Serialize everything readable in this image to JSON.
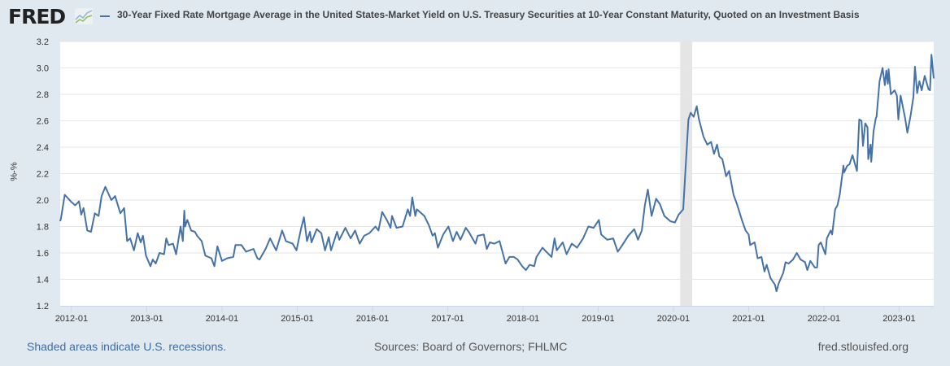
{
  "header": {
    "logo": "FRED",
    "title": "30-Year Fixed Rate Mortgage Average in the United States-Market Yield on U.S. Treasury Securities at 10-Year Constant Maturity, Quoted on an Investment Basis"
  },
  "footer": {
    "recession_note": "Shaded areas indicate U.S. recessions.",
    "sources": "Sources: Board of Governors; FHLMC",
    "site": "fred.stlouisfed.org"
  },
  "colors": {
    "line": "#4572a7",
    "recession": "#e5e5e5",
    "grid": "#e6e6e6",
    "background": "#e1e9f0"
  },
  "chart_data": {
    "type": "line",
    "title": "30-Year Fixed Rate Mortgage Average in the United States-Market Yield on U.S. Treasury Securities at 10-Year Constant Maturity, Quoted on an Investment Basis",
    "xlabel": "",
    "ylabel": "%-%",
    "xlim": [
      2011.85,
      2023.46
    ],
    "ylim": [
      1.2,
      3.2
    ],
    "yticks": [
      1.2,
      1.4,
      1.6,
      1.8,
      2.0,
      2.2,
      2.4,
      2.6,
      2.8,
      3.0,
      3.2
    ],
    "ytick_labels": [
      "1.2",
      "1.4",
      "1.6",
      "1.8",
      "2.0",
      "2.2",
      "2.4",
      "2.6",
      "2.8",
      "3.0",
      "3.2"
    ],
    "xticks": [
      2012,
      2013,
      2014,
      2015,
      2016,
      2017,
      2018,
      2019,
      2020,
      2021,
      2022,
      2023
    ],
    "xtick_labels": [
      "2012-01",
      "2013-01",
      "2014-01",
      "2015-01",
      "2016-01",
      "2017-01",
      "2018-01",
      "2019-01",
      "2020-01",
      "2021-01",
      "2022-01",
      "2023-01"
    ],
    "grid": true,
    "recessions": [
      [
        2020.09,
        2020.25
      ]
    ],
    "series": [
      {
        "name": "30-Year Fixed Rate Mortgage Average in the United States-Market Yield on U.S. Treasury Securities at 10-Year Constant Maturity, Quoted on an Investment Basis",
        "x": [
          2011.85,
          2011.86,
          2011.91,
          2011.99,
          2012.05,
          2012.1,
          2012.13,
          2012.16,
          2012.21,
          2012.26,
          2012.31,
          2012.36,
          2012.4,
          2012.45,
          2012.53,
          2012.58,
          2012.65,
          2012.7,
          2012.74,
          2012.78,
          2012.83,
          2012.88,
          2012.92,
          2012.95,
          2012.99,
          2013.05,
          2013.08,
          2013.12,
          2013.17,
          2013.23,
          2013.26,
          2013.29,
          2013.35,
          2013.39,
          2013.45,
          2013.48,
          2013.5,
          2013.51,
          2013.54,
          2013.59,
          2013.64,
          2013.67,
          2013.73,
          2013.78,
          2013.86,
          2013.9,
          2013.94,
          2014.0,
          2014.07,
          2014.15,
          2014.18,
          2014.26,
          2014.32,
          2014.42,
          2014.47,
          2014.5,
          2014.58,
          2014.64,
          2014.72,
          2014.8,
          2014.85,
          2014.94,
          2014.99,
          2015.05,
          2015.09,
          2015.13,
          2015.17,
          2015.19,
          2015.26,
          2015.32,
          2015.37,
          2015.42,
          2015.45,
          2015.53,
          2015.56,
          2015.64,
          2015.71,
          2015.77,
          2015.83,
          2015.89,
          2015.96,
          2016.04,
          2016.08,
          2016.13,
          2016.2,
          2016.24,
          2016.26,
          2016.32,
          2016.4,
          2016.47,
          2016.5,
          2016.53,
          2016.57,
          2016.59,
          2016.69,
          2016.75,
          2016.8,
          2016.83,
          2016.87,
          2016.94,
          2017.01,
          2017.07,
          2017.12,
          2017.17,
          2017.24,
          2017.28,
          2017.37,
          2017.4,
          2017.48,
          2017.52,
          2017.56,
          2017.62,
          2017.69,
          2017.77,
          2017.82,
          2017.88,
          2017.93,
          2017.99,
          2018.04,
          2018.09,
          2018.15,
          2018.18,
          2018.26,
          2018.31,
          2018.38,
          2018.42,
          2018.45,
          2018.53,
          2018.58,
          2018.65,
          2018.72,
          2018.8,
          2018.87,
          2018.94,
          2019.01,
          2019.04,
          2019.12,
          2019.2,
          2019.26,
          2019.31,
          2019.4,
          2019.48,
          2019.53,
          2019.58,
          2019.62,
          2019.66,
          2019.71,
          2019.77,
          2019.82,
          2019.88,
          2019.96,
          2020.02,
          2020.07,
          2020.13,
          2020.16,
          2020.2,
          2020.23,
          2020.27,
          2020.31,
          2020.34,
          2020.4,
          2020.45,
          2020.5,
          2020.54,
          2020.58,
          2020.61,
          2020.65,
          2020.7,
          2020.74,
          2020.8,
          2020.85,
          2020.91,
          2020.96,
          2021.0,
          2021.02,
          2021.08,
          2021.12,
          2021.17,
          2021.21,
          2021.24,
          2021.29,
          2021.35,
          2021.37,
          2021.4,
          2021.46,
          2021.49,
          2021.53,
          2021.59,
          2021.64,
          2021.69,
          2021.75,
          2021.78,
          2021.82,
          2021.88,
          2021.91,
          2021.93,
          2021.96,
          2022.02,
          2022.04,
          2022.09,
          2022.11,
          2022.15,
          2022.18,
          2022.21,
          2022.26,
          2022.27,
          2022.31,
          2022.34,
          2022.38,
          2022.42,
          2022.44,
          2022.47,
          2022.5,
          2022.52,
          2022.55,
          2022.58,
          2022.59,
          2022.62,
          2022.63,
          2022.66,
          2022.69,
          2022.7,
          2022.74,
          2022.78,
          2022.81,
          2022.83,
          2022.85,
          2022.86,
          2022.89,
          2022.94,
          2022.97,
          2022.99,
          2023.02,
          2023.08,
          2023.11,
          2023.15,
          2023.19,
          2023.21,
          2023.24,
          2023.27,
          2023.3,
          2023.34,
          2023.39,
          2023.41,
          2023.43,
          2023.46
        ],
        "y": [
          1.84,
          1.86,
          2.04,
          1.99,
          1.96,
          1.99,
          1.89,
          1.94,
          1.77,
          1.76,
          1.9,
          1.88,
          2.03,
          2.1,
          2.0,
          2.03,
          1.9,
          1.94,
          1.69,
          1.71,
          1.62,
          1.75,
          1.68,
          1.73,
          1.58,
          1.5,
          1.55,
          1.52,
          1.6,
          1.59,
          1.71,
          1.66,
          1.67,
          1.59,
          1.8,
          1.69,
          1.92,
          1.8,
          1.85,
          1.77,
          1.76,
          1.73,
          1.69,
          1.58,
          1.56,
          1.5,
          1.65,
          1.54,
          1.56,
          1.57,
          1.66,
          1.66,
          1.61,
          1.63,
          1.56,
          1.55,
          1.63,
          1.71,
          1.62,
          1.77,
          1.69,
          1.67,
          1.62,
          1.78,
          1.87,
          1.69,
          1.76,
          1.68,
          1.78,
          1.75,
          1.62,
          1.72,
          1.62,
          1.76,
          1.7,
          1.79,
          1.71,
          1.77,
          1.67,
          1.73,
          1.75,
          1.8,
          1.77,
          1.91,
          1.84,
          1.79,
          1.88,
          1.79,
          1.8,
          1.93,
          1.88,
          2.02,
          1.88,
          1.93,
          1.88,
          1.81,
          1.73,
          1.75,
          1.64,
          1.74,
          1.8,
          1.69,
          1.76,
          1.7,
          1.79,
          1.76,
          1.67,
          1.73,
          1.74,
          1.63,
          1.68,
          1.67,
          1.69,
          1.52,
          1.57,
          1.57,
          1.55,
          1.5,
          1.47,
          1.51,
          1.5,
          1.57,
          1.64,
          1.61,
          1.57,
          1.71,
          1.62,
          1.68,
          1.59,
          1.67,
          1.64,
          1.71,
          1.8,
          1.79,
          1.85,
          1.74,
          1.7,
          1.71,
          1.61,
          1.65,
          1.73,
          1.78,
          1.7,
          1.77,
          1.96,
          2.08,
          1.88,
          2.01,
          1.97,
          1.88,
          1.84,
          1.83,
          1.89,
          1.93,
          2.22,
          2.61,
          2.66,
          2.63,
          2.71,
          2.61,
          2.48,
          2.42,
          2.44,
          2.35,
          2.42,
          2.33,
          2.31,
          2.18,
          2.22,
          2.04,
          1.96,
          1.85,
          1.77,
          1.74,
          1.66,
          1.68,
          1.56,
          1.57,
          1.46,
          1.51,
          1.41,
          1.36,
          1.31,
          1.37,
          1.45,
          1.53,
          1.52,
          1.55,
          1.6,
          1.55,
          1.53,
          1.47,
          1.54,
          1.49,
          1.49,
          1.66,
          1.68,
          1.59,
          1.71,
          1.77,
          1.74,
          1.93,
          1.96,
          2.04,
          2.26,
          2.21,
          2.26,
          2.27,
          2.34,
          2.26,
          2.22,
          2.61,
          2.6,
          2.41,
          2.58,
          2.55,
          2.31,
          2.42,
          2.29,
          2.52,
          2.62,
          2.63,
          2.9,
          3.0,
          2.87,
          2.98,
          2.88,
          2.99,
          2.8,
          2.83,
          2.79,
          2.61,
          2.79,
          2.62,
          2.51,
          2.63,
          2.78,
          3.01,
          2.81,
          2.9,
          2.83,
          2.94,
          2.84,
          2.83,
          3.1,
          2.92
        ]
      }
    ]
  }
}
